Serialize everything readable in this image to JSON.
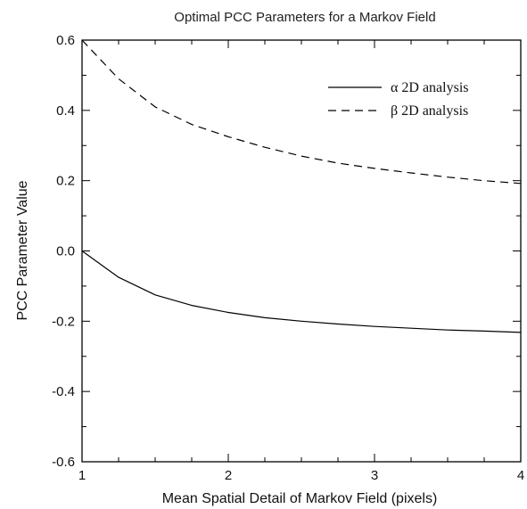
{
  "chart_data": {
    "type": "line",
    "title": "Optimal PCC Parameters for a Markov Field",
    "xlabel": "Mean Spatial Detail of Markov Field (pixels)",
    "ylabel": "PCC Parameter Value",
    "xlim": [
      1,
      4
    ],
    "ylim": [
      -0.6,
      0.6
    ],
    "xticks": [
      1,
      2,
      3,
      4
    ],
    "yticks": [
      -0.6,
      -0.4,
      -0.2,
      0.0,
      0.2,
      0.4,
      0.6
    ],
    "xtick_labels": [
      "1",
      "2",
      "3",
      "4"
    ],
    "ytick_labels": [
      "-0.6",
      "-0.4",
      "-0.2",
      "0.0",
      "0.2",
      "0.4",
      "0.6"
    ],
    "grid": false,
    "legend_position": "top-right",
    "series": [
      {
        "name": "α 2D analysis",
        "style": "solid",
        "x": [
          1.0,
          1.25,
          1.5,
          1.75,
          2.0,
          2.25,
          2.5,
          2.75,
          3.0,
          3.25,
          3.5,
          3.75,
          4.0
        ],
        "y": [
          0.0,
          -0.075,
          -0.125,
          -0.155,
          -0.175,
          -0.19,
          -0.2,
          -0.208,
          -0.215,
          -0.22,
          -0.225,
          -0.228,
          -0.232
        ]
      },
      {
        "name": "β 2D analysis",
        "style": "dashed",
        "x": [
          1.0,
          1.25,
          1.5,
          1.75,
          2.0,
          2.25,
          2.5,
          2.75,
          3.0,
          3.25,
          3.5,
          3.75,
          4.0
        ],
        "y": [
          0.6,
          0.49,
          0.41,
          0.36,
          0.325,
          0.295,
          0.27,
          0.25,
          0.235,
          0.222,
          0.21,
          0.2,
          0.192
        ]
      }
    ]
  }
}
